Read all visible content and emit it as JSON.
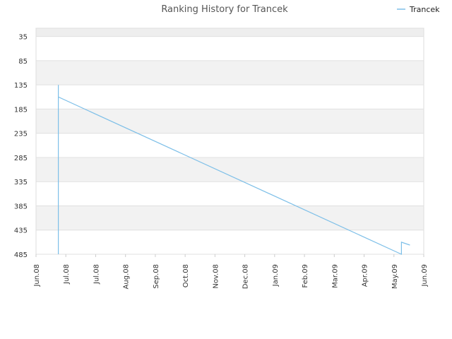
{
  "chart_data": {
    "type": "line",
    "title": "Ranking History for Trancek",
    "xlabel": "",
    "ylabel": "",
    "legend_position": "top-right",
    "grid": true,
    "y_inverted": true,
    "ylim": [
      485,
      18
    ],
    "y_ticks": [
      35,
      85,
      135,
      185,
      235,
      285,
      335,
      385,
      435,
      485
    ],
    "x_ticks": [
      "Jun.08",
      "Jul.08",
      "Jul.08",
      "Aug.08",
      "Sep.08",
      "Oct.08",
      "Nov.08",
      "Dec.08",
      "Jan.09",
      "Feb.09",
      "Mar.09",
      "Apr.09",
      "May.09",
      "Jun.09"
    ],
    "x_range": [
      "2008-06-01",
      "2009-06-01"
    ],
    "series": [
      {
        "name": "Trancek",
        "color": "#7dbfe8",
        "points": [
          {
            "x": "2008-06-22",
            "y": 485
          },
          {
            "x": "2008-06-22",
            "y": 135
          },
          {
            "x": "2008-06-22",
            "y": 160
          },
          {
            "x": "2009-05-11",
            "y": 485
          },
          {
            "x": "2009-05-11",
            "y": 460
          },
          {
            "x": "2009-05-19",
            "y": 466
          }
        ]
      }
    ]
  }
}
